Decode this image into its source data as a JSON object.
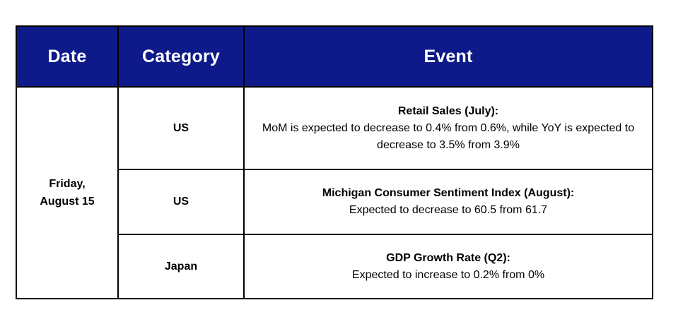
{
  "header": {
    "date": "Date",
    "category": "Category",
    "event": "Event"
  },
  "date_cell": {
    "line1": "Friday,",
    "line2": "August 15"
  },
  "rows": [
    {
      "category": "US",
      "event_title": "Retail Sales (July):",
      "event_desc": "MoM is expected to decrease to 0.4% from 0.6%, while YoY is expected to decrease to 3.5% from 3.9%"
    },
    {
      "category": "US",
      "event_title": "Michigan Consumer Sentiment Index (August):",
      "event_desc": "Expected to decrease to 60.5 from 61.7"
    },
    {
      "category": "Japan",
      "event_title": "GDP Growth Rate (Q2):",
      "event_desc": "Expected to increase to 0.2% from 0%"
    }
  ],
  "colors": {
    "header_bg": "#0f1a8a",
    "header_text": "#ffffff",
    "border": "#000000"
  }
}
